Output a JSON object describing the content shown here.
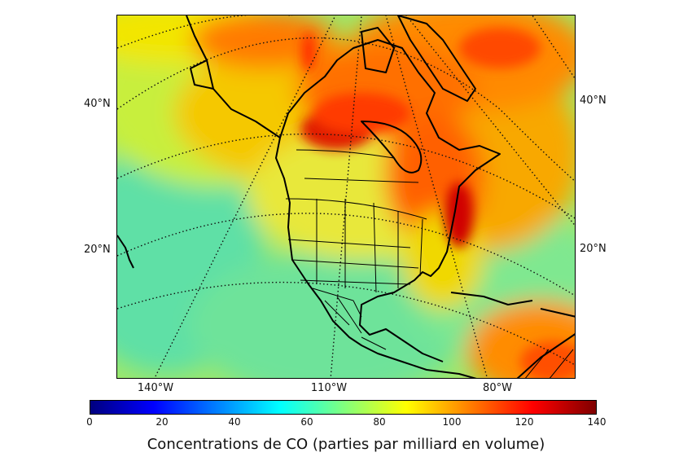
{
  "map": {
    "latitude_labels_left": [
      "40°N",
      "20°N"
    ],
    "latitude_labels_right": [
      "40°N",
      "20°N"
    ],
    "longitude_labels": [
      "140°W",
      "110°W",
      "80°W"
    ]
  },
  "colorbar": {
    "ticks": [
      "0",
      "20",
      "40",
      "60",
      "80",
      "100",
      "120",
      "140"
    ],
    "min": 0,
    "max": 140,
    "colormap": "jet",
    "colors": [
      "#00007f",
      "#0000ff",
      "#007fff",
      "#00ffff",
      "#7fff7f",
      "#ffff00",
      "#ff7f00",
      "#ff0000",
      "#7f0000"
    ],
    "label": "Concentrations de CO (parties par milliard en volume)"
  }
}
